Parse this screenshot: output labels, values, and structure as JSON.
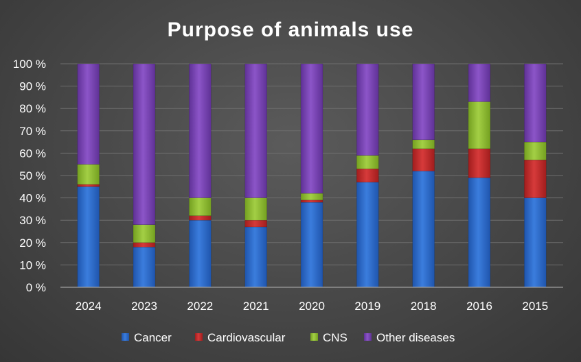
{
  "chart_data": {
    "type": "bar",
    "stacked": "percent",
    "title": "Purpose of animals use",
    "xlabel": "",
    "ylabel": "",
    "categories": [
      "2024",
      "2023",
      "2022",
      "2021",
      "2020",
      "2019",
      "2018",
      "2016",
      "2015"
    ],
    "series": [
      {
        "name": "Cancer",
        "color": "#2f6fd0",
        "values": [
          45,
          18,
          30,
          27,
          38,
          47,
          52,
          49,
          40
        ]
      },
      {
        "name": "Cardiovascular",
        "color": "#c42a2a",
        "values": [
          1,
          2,
          2,
          3,
          1,
          6,
          10,
          13,
          17
        ]
      },
      {
        "name": "CNS",
        "color": "#8fbf2f",
        "values": [
          9,
          8,
          8,
          10,
          3,
          6,
          4,
          21,
          8
        ]
      },
      {
        "name": "Other diseases",
        "color": "#7b44b8",
        "values": [
          45,
          72,
          60,
          60,
          58,
          41,
          34,
          17,
          35
        ]
      }
    ],
    "ylim": [
      0,
      100
    ],
    "yticks": [
      "0 %",
      "10 %",
      "20 %",
      "30 %",
      "40 %",
      "50 %",
      "60 %",
      "70 %",
      "80 %",
      "90 %",
      "100 %"
    ],
    "grid": true,
    "legend": "bottom-center"
  }
}
